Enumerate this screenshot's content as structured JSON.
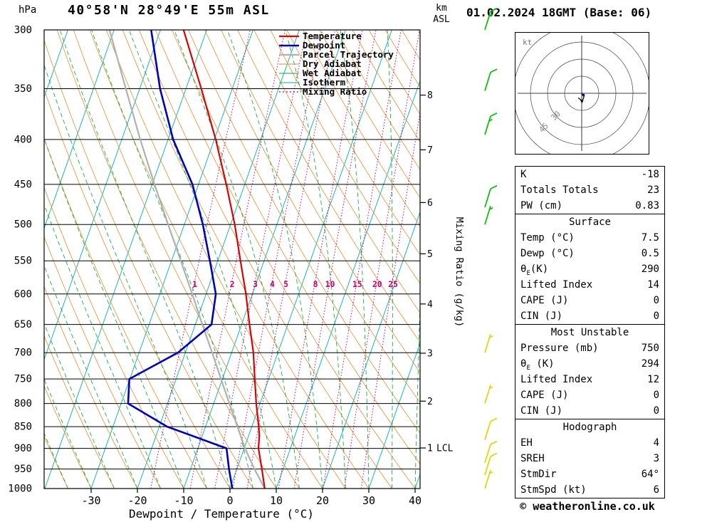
{
  "header": {
    "pressure_unit": "hPa",
    "title": "40°58'N 28°49'E 55m ASL",
    "km_unit": "km",
    "asl_unit": "ASL",
    "datetime": "01.02.2024 18GMT (Base: 06)"
  },
  "axes": {
    "pressure_ticks": [
      300,
      350,
      400,
      450,
      500,
      550,
      600,
      650,
      700,
      750,
      800,
      850,
      900,
      950,
      1000
    ],
    "temp_ticks": [
      -30,
      -20,
      -10,
      0,
      10,
      20,
      30,
      40
    ],
    "xlabel": "Dewpoint / Temperature (°C)",
    "right_label": "Mixing Ratio (g/kg)",
    "km_ticks": [
      1,
      2,
      3,
      4,
      5,
      6,
      7,
      8
    ],
    "km_tick_pressures": {
      "1": 899,
      "2": 795,
      "3": 701,
      "4": 616,
      "5": 540,
      "6": 472,
      "7": 411,
      "8": 356
    },
    "lcl_label": "LCL",
    "lcl_km": 1
  },
  "legend": [
    {
      "label": "Temperature",
      "color": "#dd0000",
      "dash": "",
      "width": 2.2
    },
    {
      "label": "Dewpoint",
      "color": "#0000bb",
      "dash": "",
      "width": 2.6
    },
    {
      "label": "Parcel Trajectory",
      "color": "#b0b0b0",
      "dash": "",
      "width": 2.2
    },
    {
      "label": "Dry Adiabat",
      "color": "#e09030",
      "dash": "",
      "width": 1
    },
    {
      "label": "Wet Adiabat",
      "color": "#00a830",
      "dash": "",
      "width": 1
    },
    {
      "label": "Isotherm",
      "color": "#00b0b0",
      "dash": "",
      "width": 1
    },
    {
      "label": "Mixing Ratio",
      "color": "#cc0066",
      "dash": "2,3",
      "width": 1.2
    }
  ],
  "chart_data": {
    "type": "line",
    "variant": "skew-t-log-p",
    "pressure_range": [
      300,
      1000
    ],
    "temp_axis_range": [
      -40,
      40
    ],
    "isotherm_step": 10,
    "dry_adiabat_step": 5,
    "wet_adiabat_step": 5,
    "mixing_ratio_lines": [
      1,
      2,
      3,
      4,
      5,
      8,
      10,
      15,
      20,
      25
    ],
    "temperature_profile": [
      [
        1000,
        7.5
      ],
      [
        950,
        5.4
      ],
      [
        900,
        3.1
      ],
      [
        870,
        2.3
      ],
      [
        850,
        1.5
      ],
      [
        800,
        -0.8
      ],
      [
        750,
        -3.0
      ],
      [
        700,
        -5.3
      ],
      [
        650,
        -8.3
      ],
      [
        600,
        -11.4
      ],
      [
        550,
        -15.1
      ],
      [
        500,
        -19.1
      ],
      [
        450,
        -24.0
      ],
      [
        400,
        -29.7
      ],
      [
        350,
        -36.7
      ],
      [
        300,
        -45.0
      ]
    ],
    "dewpoint_profile": [
      [
        1000,
        0.5
      ],
      [
        950,
        -1.7
      ],
      [
        900,
        -3.8
      ],
      [
        850,
        -18.3
      ],
      [
        800,
        -28.5
      ],
      [
        750,
        -30.1
      ],
      [
        700,
        -21.6
      ],
      [
        650,
        -16.5
      ],
      [
        600,
        -17.9
      ],
      [
        550,
        -21.7
      ],
      [
        500,
        -26.0
      ],
      [
        450,
        -31.3
      ],
      [
        400,
        -38.9
      ],
      [
        350,
        -45.6
      ],
      [
        300,
        -52.0
      ]
    ],
    "parcel_profile": [
      [
        1000,
        7.5
      ],
      [
        950,
        3.8
      ],
      [
        900,
        0.2
      ],
      [
        850,
        -3.1
      ],
      [
        800,
        -6.6
      ],
      [
        750,
        -10.3
      ],
      [
        700,
        -14.2
      ],
      [
        650,
        -18.5
      ],
      [
        600,
        -23.0
      ],
      [
        550,
        -28.0
      ],
      [
        500,
        -33.5
      ],
      [
        450,
        -39.5
      ],
      [
        400,
        -46.0
      ],
      [
        350,
        -53.0
      ],
      [
        300,
        -61.0
      ]
    ]
  },
  "wind_barbs": [
    {
      "pressure": 300,
      "speed_kt": 15,
      "color": "#00c000"
    },
    {
      "pressure": 352,
      "speed_kt": 10,
      "color": "#00c000"
    },
    {
      "pressure": 395,
      "speed_kt": 15,
      "color": "#00c000"
    },
    {
      "pressure": 478,
      "speed_kt": 10,
      "color": "#00c000"
    },
    {
      "pressure": 500,
      "speed_kt": 5,
      "color": "#00c000"
    },
    {
      "pressure": 700,
      "speed_kt": 5,
      "color": "#d8d800"
    },
    {
      "pressure": 800,
      "speed_kt": 5,
      "color": "#d8d800"
    },
    {
      "pressure": 880,
      "speed_kt": 10,
      "color": "#d8d800"
    },
    {
      "pressure": 935,
      "speed_kt": 10,
      "color": "#d8d800"
    },
    {
      "pressure": 965,
      "speed_kt": 10,
      "color": "#d8d800"
    },
    {
      "pressure": 1000,
      "speed_kt": 5,
      "color": "#d8d800"
    }
  ],
  "hodograph": {
    "unit_label": "kt",
    "rings_kt": [
      15,
      30,
      45,
      60
    ],
    "ring_labels": [
      {
        "kt": 30,
        "label": "30"
      },
      {
        "kt": 45,
        "label": "45"
      }
    ],
    "trace_kt": [
      [
        0,
        0
      ],
      [
        2,
        3
      ],
      [
        0.5,
        7
      ],
      [
        -3,
        4
      ]
    ]
  },
  "table": {
    "sections": [
      {
        "header": null,
        "rows": [
          [
            "K",
            "-18"
          ],
          [
            "Totals Totals",
            "23"
          ],
          [
            "PW (cm)",
            "0.83"
          ]
        ]
      },
      {
        "header": "Surface",
        "rows": [
          [
            "Temp (°C)",
            "7.5"
          ],
          [
            "Dewp (°C)",
            "0.5"
          ],
          [
            "θE(K)",
            "290"
          ],
          [
            "Lifted Index",
            "14"
          ],
          [
            "CAPE (J)",
            "0"
          ],
          [
            "CIN (J)",
            "0"
          ]
        ]
      },
      {
        "header": "Most Unstable",
        "rows": [
          [
            "Pressure (mb)",
            "750"
          ],
          [
            "θE (K)",
            "294"
          ],
          [
            "Lifted Index",
            "12"
          ],
          [
            "CAPE (J)",
            "0"
          ],
          [
            "CIN (J)",
            "0"
          ]
        ]
      },
      {
        "header": "Hodograph",
        "rows": [
          [
            "EH",
            "4"
          ],
          [
            "SREH",
            "3"
          ],
          [
            "StmDir",
            "64°"
          ],
          [
            "StmSpd (kt)",
            "6"
          ]
        ]
      }
    ]
  },
  "footer": {
    "copyright": "© weatheronline.co.uk"
  }
}
